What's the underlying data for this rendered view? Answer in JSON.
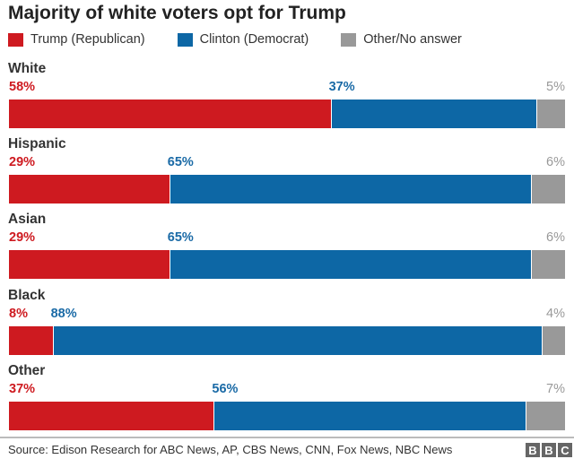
{
  "chart_data": {
    "type": "bar",
    "orientation": "horizontal",
    "stacked": true,
    "title": "Majority of white voters opt for Trump",
    "categories": [
      "White",
      "Hispanic",
      "Asian",
      "Black",
      "Other"
    ],
    "series": [
      {
        "name": "Trump (Republican)",
        "color": "#ce1a20",
        "values": [
          58,
          29,
          29,
          8,
          37
        ]
      },
      {
        "name": "Clinton (Democrat)",
        "color": "#0d67a5",
        "values": [
          37,
          65,
          65,
          88,
          56
        ]
      },
      {
        "name": "Other/No answer",
        "color": "#999999",
        "values": [
          5,
          6,
          6,
          4,
          7
        ]
      }
    ],
    "label_colors": [
      "#ce1a20",
      "#1a6aa6",
      "#999999"
    ],
    "xlim": [
      0,
      100
    ],
    "legend": "top",
    "grid": false,
    "source": "Source: Edison Research for ABC News, AP, CBS News, CNN, Fox News, NBC News",
    "logo": "BBC"
  }
}
